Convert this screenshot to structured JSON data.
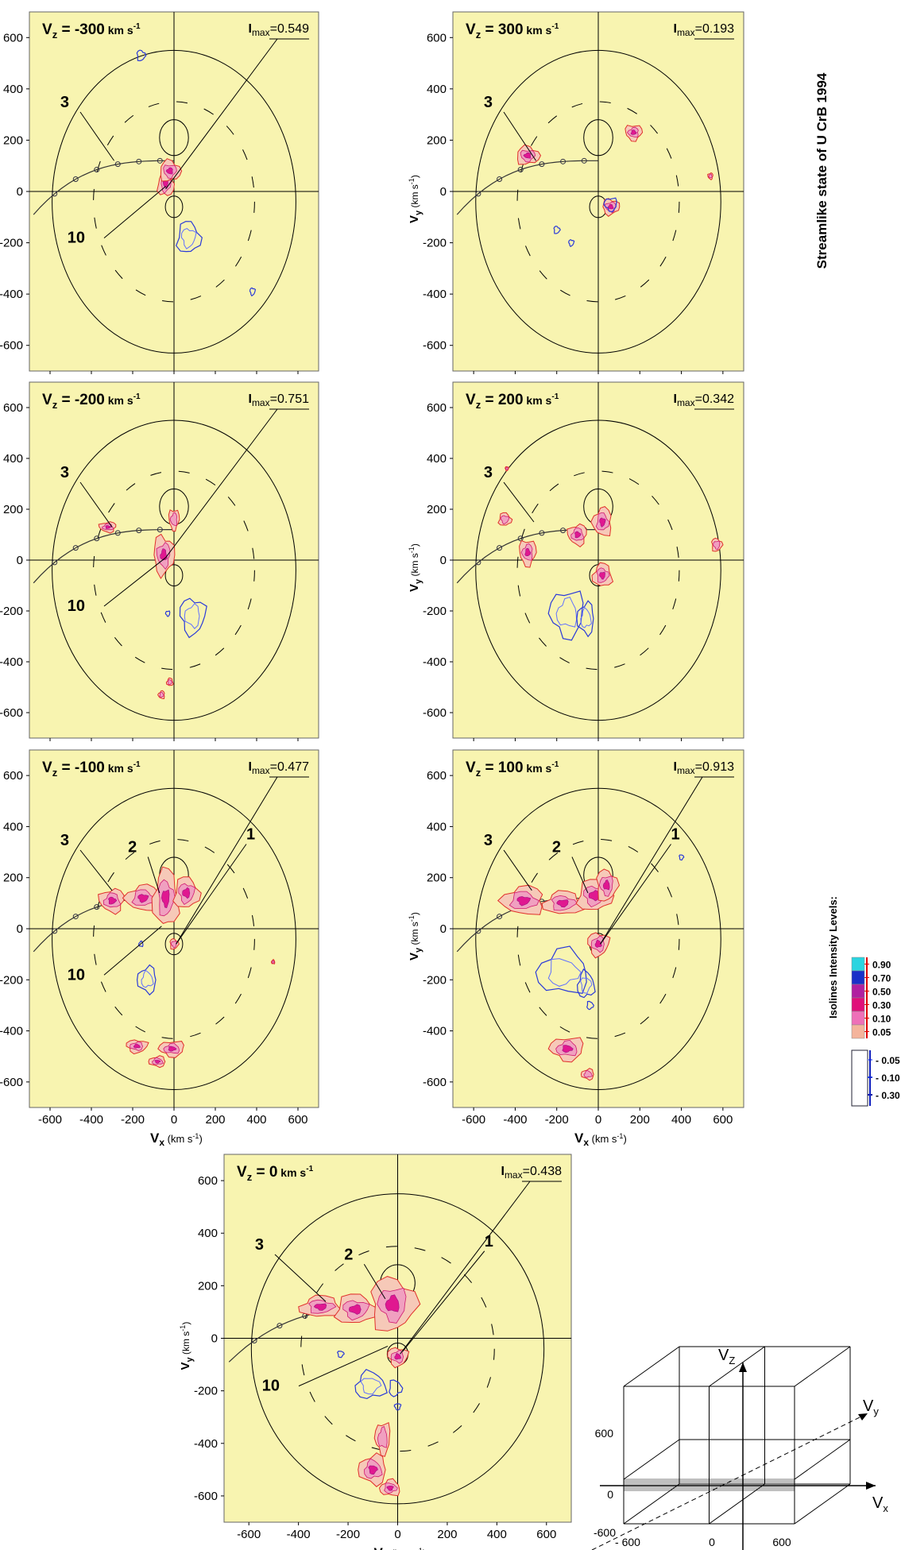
{
  "figure_title": "Streamlike state of  U CrB 1994",
  "colorbar": {
    "title": "Isolines Intensity Levels:",
    "positive_levels": [
      "0.90",
      "0.70",
      "0.50",
      "0.30",
      "0.10",
      "0.05"
    ],
    "positive_colors": [
      "#2ad4e0",
      "#1a30c8",
      "#b020a0",
      "#e0107a",
      "#ee70b8",
      "#f4b49c"
    ],
    "negative_levels": [
      "- 0.05",
      "- 0.10",
      "- 0.30"
    ],
    "negative_colors": [
      "#7a8aff",
      "#2040e0",
      "#0010a0"
    ]
  },
  "panel_common": {
    "xlabel_main": "V",
    "xlabel_sub": "x",
    "xlabel_unit": "(km s",
    "xlabel_unit_sup": "-1",
    "xlabel_unit_close": ")",
    "ylabel_main": "V",
    "ylabel_sub": "y",
    "ylabel_unit": "(km s",
    "ylabel_unit_sup": "-1",
    "ylabel_unit_close": ")",
    "vz_prefix": "V",
    "vz_sub": "z",
    "vz_unit": "km s",
    "vz_unit_sup": "-1",
    "imax_prefix": "I",
    "imax_sub": "max"
  },
  "chart_data": [
    {
      "type": "contour",
      "id": "vz_-300",
      "vz_value": "-300",
      "imax": "0.549",
      "xlim": [
        -700,
        700
      ],
      "ylim": [
        -700,
        700
      ],
      "x_ticks": [
        "-600",
        "-400",
        "-200",
        "0",
        "200",
        "400",
        "600"
      ],
      "y_ticks": [
        "600",
        "400",
        "200",
        "0",
        "-200",
        "-400",
        "-600"
      ],
      "show_x_ticks": false,
      "labels": [
        {
          "text": "3",
          "target": [
            -290,
            120
          ]
        },
        {
          "text": "10",
          "target": [
            -40,
            20
          ]
        }
      ],
      "peak_leader": true,
      "positive_blobs": [
        [
          -40,
          30,
          38,
          50
        ],
        [
          -20,
          80,
          50,
          40
        ]
      ],
      "negative_blobs": [
        [
          70,
          -180,
          55,
          60
        ],
        [
          -160,
          530,
          20,
          20
        ],
        [
          380,
          -390,
          12,
          14
        ]
      ]
    },
    {
      "type": "contour",
      "id": "vz_300",
      "vz_value": "300",
      "imax": "0.193",
      "xlim": [
        -700,
        700
      ],
      "ylim": [
        -700,
        700
      ],
      "x_ticks": [
        "-600",
        "-400",
        "-200",
        "0",
        "200",
        "400",
        "600"
      ],
      "y_ticks": [
        "600",
        "400",
        "200",
        "0",
        "-200",
        "-400",
        "-600"
      ],
      "show_x_ticks": false,
      "labels": [
        {
          "text": "3",
          "target": [
            -300,
            120
          ]
        }
      ],
      "peak_leader": false,
      "positive_blobs": [
        [
          -340,
          140,
          55,
          35
        ],
        [
          60,
          -60,
          40,
          30
        ],
        [
          170,
          230,
          40,
          30
        ],
        [
          540,
          60,
          12,
          12
        ]
      ],
      "negative_blobs": [
        [
          -200,
          -150,
          14,
          14
        ],
        [
          -130,
          -200,
          12,
          12
        ],
        [
          60,
          -50,
          30,
          25
        ]
      ]
    },
    {
      "type": "contour",
      "id": "vz_-200",
      "vz_value": "-200",
      "imax": "0.751",
      "xlim": [
        -700,
        700
      ],
      "ylim": [
        -700,
        700
      ],
      "x_ticks": [
        "-600",
        "-400",
        "-200",
        "0",
        "200",
        "400",
        "600"
      ],
      "y_ticks": [
        "600",
        "400",
        "200",
        "0",
        "-200",
        "-400",
        "-600"
      ],
      "show_x_ticks": false,
      "labels": [
        {
          "text": "3",
          "target": [
            -300,
            130
          ]
        },
        {
          "text": "10",
          "target": [
            -40,
            10
          ]
        }
      ],
      "peak_leader": true,
      "positive_blobs": [
        [
          -50,
          20,
          50,
          75
        ],
        [
          0,
          160,
          25,
          40
        ],
        [
          -320,
          130,
          40,
          20
        ],
        [
          -60,
          -530,
          15,
          15
        ],
        [
          -20,
          -480,
          15,
          15
        ]
      ],
      "negative_blobs": [
        [
          90,
          -220,
          60,
          70
        ],
        [
          -30,
          -210,
          10,
          10
        ]
      ]
    },
    {
      "type": "contour",
      "id": "vz_200",
      "vz_value": "200",
      "imax": "0.342",
      "xlim": [
        -700,
        700
      ],
      "ylim": [
        -700,
        700
      ],
      "x_ticks": [
        "-600",
        "-400",
        "-200",
        "0",
        "200",
        "400",
        "600"
      ],
      "y_ticks": [
        "600",
        "400",
        "200",
        "0",
        "-200",
        "-400",
        "-600"
      ],
      "show_x_ticks": false,
      "labels": [
        {
          "text": "3",
          "target": [
            -310,
            150
          ]
        }
      ],
      "peak_leader": false,
      "positive_blobs": [
        [
          -340,
          30,
          40,
          50
        ],
        [
          -100,
          100,
          45,
          40
        ],
        [
          20,
          150,
          45,
          55
        ],
        [
          20,
          -60,
          45,
          45
        ],
        [
          -450,
          160,
          30,
          25
        ],
        [
          570,
          60,
          25,
          25
        ],
        [
          -440,
          360,
          8,
          8
        ]
      ],
      "negative_blobs": [
        [
          -150,
          -210,
          80,
          90
        ],
        [
          -60,
          -230,
          40,
          60
        ]
      ]
    },
    {
      "type": "contour",
      "id": "vz_-100",
      "vz_value": "-100",
      "imax": "0.477",
      "xlim": [
        -700,
        700
      ],
      "ylim": [
        -700,
        700
      ],
      "x_ticks": [
        "-600",
        "-400",
        "-200",
        "0",
        "200",
        "400",
        "600"
      ],
      "y_ticks": [
        "600",
        "400",
        "200",
        "0",
        "-200",
        "-400",
        "-600"
      ],
      "show_x_ticks": true,
      "labels": [
        {
          "text": "3",
          "target": [
            -300,
            150
          ]
        },
        {
          "text": "2",
          "target": [
            -70,
            140
          ]
        },
        {
          "text": "1",
          "target": [
            10,
            -60
          ]
        },
        {
          "text": "10",
          "target": [
            -60,
            10
          ]
        }
      ],
      "peak_leader": true,
      "positive_blobs": [
        [
          -300,
          110,
          60,
          45
        ],
        [
          -150,
          120,
          80,
          50
        ],
        [
          -40,
          120,
          60,
          110
        ],
        [
          60,
          140,
          60,
          60
        ],
        [
          0,
          -60,
          20,
          20
        ],
        [
          -180,
          -460,
          50,
          25
        ],
        [
          -10,
          -470,
          60,
          30
        ],
        [
          -80,
          -520,
          40,
          20
        ],
        [
          480,
          -130,
          8,
          8
        ]
      ],
      "negative_blobs": [
        [
          -130,
          -200,
          45,
          50
        ],
        [
          -160,
          -60,
          10,
          10
        ]
      ]
    },
    {
      "type": "contour",
      "id": "vz_100",
      "vz_value": "100",
      "imax": "0.913",
      "xlim": [
        -700,
        700
      ],
      "ylim": [
        -700,
        700
      ],
      "x_ticks": [
        "-600",
        "-400",
        "-200",
        "0",
        "200",
        "400",
        "600"
      ],
      "y_ticks": [
        "600",
        "400",
        "200",
        "0",
        "-200",
        "-400",
        "-600"
      ],
      "show_x_ticks": true,
      "labels": [
        {
          "text": "3",
          "target": [
            -320,
            150
          ]
        },
        {
          "text": "2",
          "target": [
            -50,
            140
          ]
        },
        {
          "text": "1",
          "target": [
            10,
            -60
          ]
        }
      ],
      "peak_leader": true,
      "positive_blobs": [
        [
          -360,
          110,
          100,
          55
        ],
        [
          -170,
          100,
          90,
          45
        ],
        [
          -20,
          130,
          80,
          60
        ],
        [
          40,
          170,
          50,
          60
        ],
        [
          0,
          -60,
          50,
          45
        ],
        [
          -150,
          -470,
          80,
          45
        ],
        [
          -50,
          -570,
          30,
          20
        ]
      ],
      "negative_blobs": [
        [
          -170,
          -170,
          120,
          85
        ],
        [
          -60,
          -220,
          40,
          50
        ],
        [
          -40,
          -300,
          15,
          15
        ],
        [
          400,
          280,
          10,
          10
        ]
      ]
    },
    {
      "type": "contour",
      "id": "vz_0",
      "vz_value": "0",
      "imax": "0.438",
      "xlim": [
        -700,
        700
      ],
      "ylim": [
        -700,
        700
      ],
      "x_ticks": [
        "-600",
        "-400",
        "-200",
        "0",
        "200",
        "400",
        "600"
      ],
      "y_ticks": [
        "600",
        "400",
        "200",
        "0",
        "-200",
        "-400",
        "-600"
      ],
      "show_x_ticks": true,
      "labels": [
        {
          "text": "3",
          "target": [
            -290,
            140
          ]
        },
        {
          "text": "2",
          "target": [
            -50,
            150
          ]
        },
        {
          "text": "1",
          "target": [
            20,
            -50
          ]
        },
        {
          "text": "10",
          "target": [
            -40,
            -30
          ]
        }
      ],
      "peak_leader": true,
      "positive_blobs": [
        [
          -310,
          120,
          80,
          40
        ],
        [
          -170,
          110,
          80,
          55
        ],
        [
          -20,
          130,
          90,
          100
        ],
        [
          0,
          -70,
          40,
          35
        ],
        [
          -60,
          -380,
          30,
          60
        ],
        [
          -100,
          -500,
          55,
          55
        ],
        [
          -30,
          -570,
          40,
          30
        ]
      ],
      "negative_blobs": [
        [
          -110,
          -180,
          60,
          50
        ],
        [
          -10,
          -190,
          25,
          30
        ],
        [
          -230,
          -60,
          12,
          12
        ],
        [
          0,
          -260,
          12,
          12
        ]
      ]
    }
  ],
  "cube": {
    "axis_x": "V",
    "axis_x_sub": "x",
    "axis_y": "V",
    "axis_y_sub": "y",
    "axis_z": "V",
    "axis_z_sub": "Z",
    "tick_z_600": "600",
    "tick_z_0": "0",
    "tick_z_-600": "-600",
    "tick_x_-600": "- 600",
    "tick_x_0": "0",
    "tick_x_600": "600"
  }
}
